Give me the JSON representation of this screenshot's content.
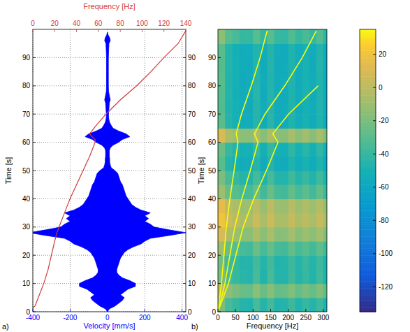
{
  "chart_data": [
    {
      "type": "line",
      "panel_label": "a)",
      "orientation": "horizontal",
      "grid": true,
      "ylabel": "Time [s]",
      "xlabel": "Velocity [mm/s]",
      "x2label": "Frequency [Hz]",
      "xlim": [
        -400,
        420
      ],
      "xticks": [
        -400,
        -200,
        0,
        200,
        400
      ],
      "x2lim": [
        0,
        140
      ],
      "x2ticks": [
        0,
        20,
        40,
        60,
        80,
        100,
        120,
        140
      ],
      "ylim": [
        0,
        100
      ],
      "yticks": [
        0,
        10,
        20,
        30,
        40,
        50,
        60,
        70,
        80,
        90
      ],
      "y2lim": [
        0,
        100
      ],
      "y2ticks": [
        0,
        10,
        20,
        30,
        40,
        50,
        60,
        70,
        80,
        90
      ],
      "series": [
        {
          "type": "area",
          "color": "#0000ff",
          "x": [
            0,
            1,
            2,
            3,
            4,
            5,
            6,
            7,
            8,
            9,
            10,
            11,
            12,
            13,
            14,
            15,
            16,
            17,
            18,
            19,
            20,
            21,
            22,
            23,
            24,
            25,
            26,
            27,
            28,
            29,
            30,
            31,
            32,
            33,
            34,
            35,
            36,
            37,
            38,
            39,
            40,
            41,
            42,
            43,
            44,
            45,
            46,
            47,
            48,
            49,
            50,
            51,
            52,
            53,
            54,
            55,
            56,
            57,
            58,
            59,
            60,
            61,
            62,
            63,
            64,
            65,
            66,
            67,
            68,
            69,
            70,
            72,
            74,
            75,
            76,
            78,
            80,
            85,
            90,
            95,
            96,
            97,
            98,
            99
          ],
          "values": [
            0,
            10,
            40,
            60,
            80,
            90,
            70,
            90,
            110,
            150,
            150,
            120,
            80,
            60,
            50,
            50,
            55,
            60,
            65,
            70,
            80,
            90,
            110,
            140,
            180,
            200,
            230,
            330,
            420,
            330,
            250,
            230,
            200,
            220,
            200,
            230,
            180,
            150,
            130,
            120,
            110,
            100,
            95,
            90,
            85,
            80,
            70,
            65,
            60,
            55,
            40,
            20,
            15,
            12,
            12,
            10,
            10,
            10,
            15,
            30,
            60,
            80,
            120,
            100,
            60,
            30,
            20,
            12,
            8,
            6,
            6,
            8,
            10,
            15,
            12,
            6,
            5,
            5,
            5,
            8,
            15,
            12,
            4,
            0
          ]
        },
        {
          "type": "line",
          "axis": "x2",
          "color": "#d03a3a",
          "x": [
            0,
            1.5,
            2,
            5,
            10,
            15,
            20,
            25,
            28,
            30,
            35,
            40,
            45,
            50,
            55,
            60,
            61,
            62,
            63,
            64,
            66,
            70,
            75,
            80,
            85,
            90,
            95,
            99.5
          ],
          "values": [
            0,
            0,
            2,
            5,
            10,
            14,
            17,
            20,
            22,
            24,
            29,
            34,
            40,
            46,
            52,
            57,
            57,
            54,
            52,
            54,
            58,
            67,
            80,
            95,
            108,
            120,
            133,
            140
          ]
        }
      ]
    },
    {
      "type": "heatmap",
      "panel_label": "b)",
      "orientation": "horizontal",
      "grid": false,
      "ylabel": "Time [s]",
      "xlabel": "Frequency [Hz]",
      "xlim": [
        0,
        310
      ],
      "xticks": [
        0,
        50,
        100,
        150,
        200,
        250,
        300
      ],
      "ylim": [
        0,
        100
      ],
      "yticks": [
        0,
        10,
        20,
        30,
        40,
        50,
        60,
        70,
        80,
        90
      ],
      "x_bins": [
        0,
        20,
        40,
        60,
        80,
        100,
        120,
        140,
        160,
        180,
        200,
        220,
        240,
        260,
        280,
        300,
        320
      ],
      "y_bins": [
        0,
        5,
        10,
        15,
        20,
        25,
        30,
        35,
        40,
        45,
        50,
        55,
        60,
        65,
        70,
        75,
        80,
        85,
        90,
        95,
        100
      ],
      "cells": [
        [
          -20,
          -35,
          -40,
          -45,
          -46,
          -35,
          -45,
          -36,
          -46,
          -45,
          -38,
          -46,
          -40,
          -45,
          -38,
          -48
        ],
        [
          0,
          -15,
          -20,
          -25,
          -26,
          -15,
          -25,
          -16,
          -26,
          -25,
          -18,
          -26,
          -20,
          -26,
          -18,
          -28
        ],
        [
          -20,
          -35,
          -40,
          -44,
          -45,
          -35,
          -46,
          -35,
          -45,
          -46,
          -37,
          -45,
          -40,
          -46,
          -37,
          -48
        ],
        [
          -22,
          -36,
          -40,
          -45,
          -45,
          -36,
          -45,
          -36,
          -46,
          -45,
          -38,
          -45,
          -39,
          -45,
          -38,
          -48
        ],
        [
          -10,
          -25,
          -30,
          -35,
          -36,
          -25,
          -35,
          -26,
          -35,
          -36,
          -27,
          -35,
          -30,
          -36,
          -28,
          -38
        ],
        [
          10,
          -5,
          -10,
          -15,
          -15,
          -5,
          -15,
          -6,
          -16,
          -15,
          -8,
          -16,
          -10,
          -15,
          -8,
          -18
        ],
        [
          20,
          5,
          0,
          -5,
          -5,
          5,
          -6,
          5,
          -5,
          -6,
          3,
          -5,
          0,
          -6,
          3,
          -8
        ],
        [
          15,
          0,
          -5,
          -10,
          -10,
          0,
          -11,
          0,
          -10,
          -11,
          -2,
          -10,
          -4,
          -10,
          -2,
          -13
        ],
        [
          -10,
          -25,
          -30,
          -35,
          -35,
          -25,
          -36,
          -25,
          -35,
          -36,
          -27,
          -35,
          -29,
          -36,
          -27,
          -38
        ],
        [
          -20,
          -35,
          -40,
          -45,
          -45,
          -35,
          -46,
          -35,
          -45,
          -46,
          -37,
          -45,
          -39,
          -46,
          -37,
          -48
        ],
        [
          -30,
          -45,
          -50,
          -55,
          -55,
          -45,
          -56,
          -45,
          -55,
          -56,
          -47,
          -55,
          -49,
          -56,
          -47,
          -58
        ],
        [
          -25,
          -40,
          -45,
          -50,
          -50,
          -40,
          -51,
          -40,
          -50,
          -51,
          -42,
          -50,
          -44,
          -51,
          -42,
          -53
        ],
        [
          10,
          -5,
          -10,
          -15,
          -15,
          -5,
          -16,
          -5,
          -15,
          -16,
          -7,
          -15,
          -9,
          -16,
          -7,
          -18
        ],
        [
          -30,
          -45,
          -50,
          -55,
          -55,
          -45,
          -56,
          -44,
          -55,
          -56,
          -47,
          -55,
          -49,
          -56,
          -47,
          -58
        ],
        [
          -32,
          -46,
          -50,
          -55,
          -56,
          -45,
          -55,
          -45,
          -56,
          -55,
          -46,
          -56,
          -50,
          -55,
          -46,
          -58
        ],
        [
          -31,
          -45,
          -51,
          -55,
          -55,
          -44,
          -56,
          -45,
          -55,
          -56,
          -47,
          -55,
          -48,
          -56,
          -47,
          -57
        ],
        [
          -30,
          -46,
          -50,
          -56,
          -55,
          -45,
          -55,
          -46,
          -55,
          -55,
          -46,
          -56,
          -49,
          -55,
          -46,
          -58
        ],
        [
          -31,
          -45,
          -50,
          -55,
          -56,
          -45,
          -56,
          -45,
          -56,
          -55,
          -47,
          -55,
          -49,
          -56,
          -45,
          -58
        ],
        [
          -30,
          -45,
          -51,
          -55,
          -55,
          -46,
          -55,
          -45,
          -55,
          -56,
          -47,
          -55,
          -50,
          -55,
          -46,
          -57
        ],
        [
          -15,
          -30,
          -35,
          -40,
          -40,
          -30,
          -41,
          -30,
          -40,
          -41,
          -32,
          -40,
          -34,
          -41,
          -32,
          -43
        ]
      ],
      "colorbar_lim": [
        -135,
        35
      ],
      "colorbar_ticks": [
        20,
        0,
        -20,
        -40,
        -60,
        -80,
        -100,
        -120
      ],
      "series": [
        {
          "type": "line",
          "color": "#f9fb0e",
          "x": [
            0,
            10,
            20,
            30,
            40,
            50,
            60,
            63,
            70,
            80,
            90,
            99.5
          ],
          "values": [
            0,
            10,
            17,
            24,
            34,
            46,
            57,
            52,
            67,
            95,
            120,
            140
          ]
        },
        {
          "type": "line",
          "color": "#f9fb0e",
          "x": [
            0,
            10,
            20,
            30,
            40,
            50,
            60,
            63,
            70,
            80,
            90,
            99.5
          ],
          "values": [
            0,
            20,
            34,
            48,
            68,
            92,
            114,
            104,
            134,
            190,
            240,
            280
          ]
        },
        {
          "type": "line",
          "color": "#f9fb0e",
          "x": [
            0,
            10,
            20,
            30,
            40,
            50,
            60,
            63,
            70,
            80
          ],
          "values": [
            0,
            30,
            51,
            72,
            102,
            138,
            171,
            156,
            201,
            285
          ]
        }
      ]
    }
  ]
}
